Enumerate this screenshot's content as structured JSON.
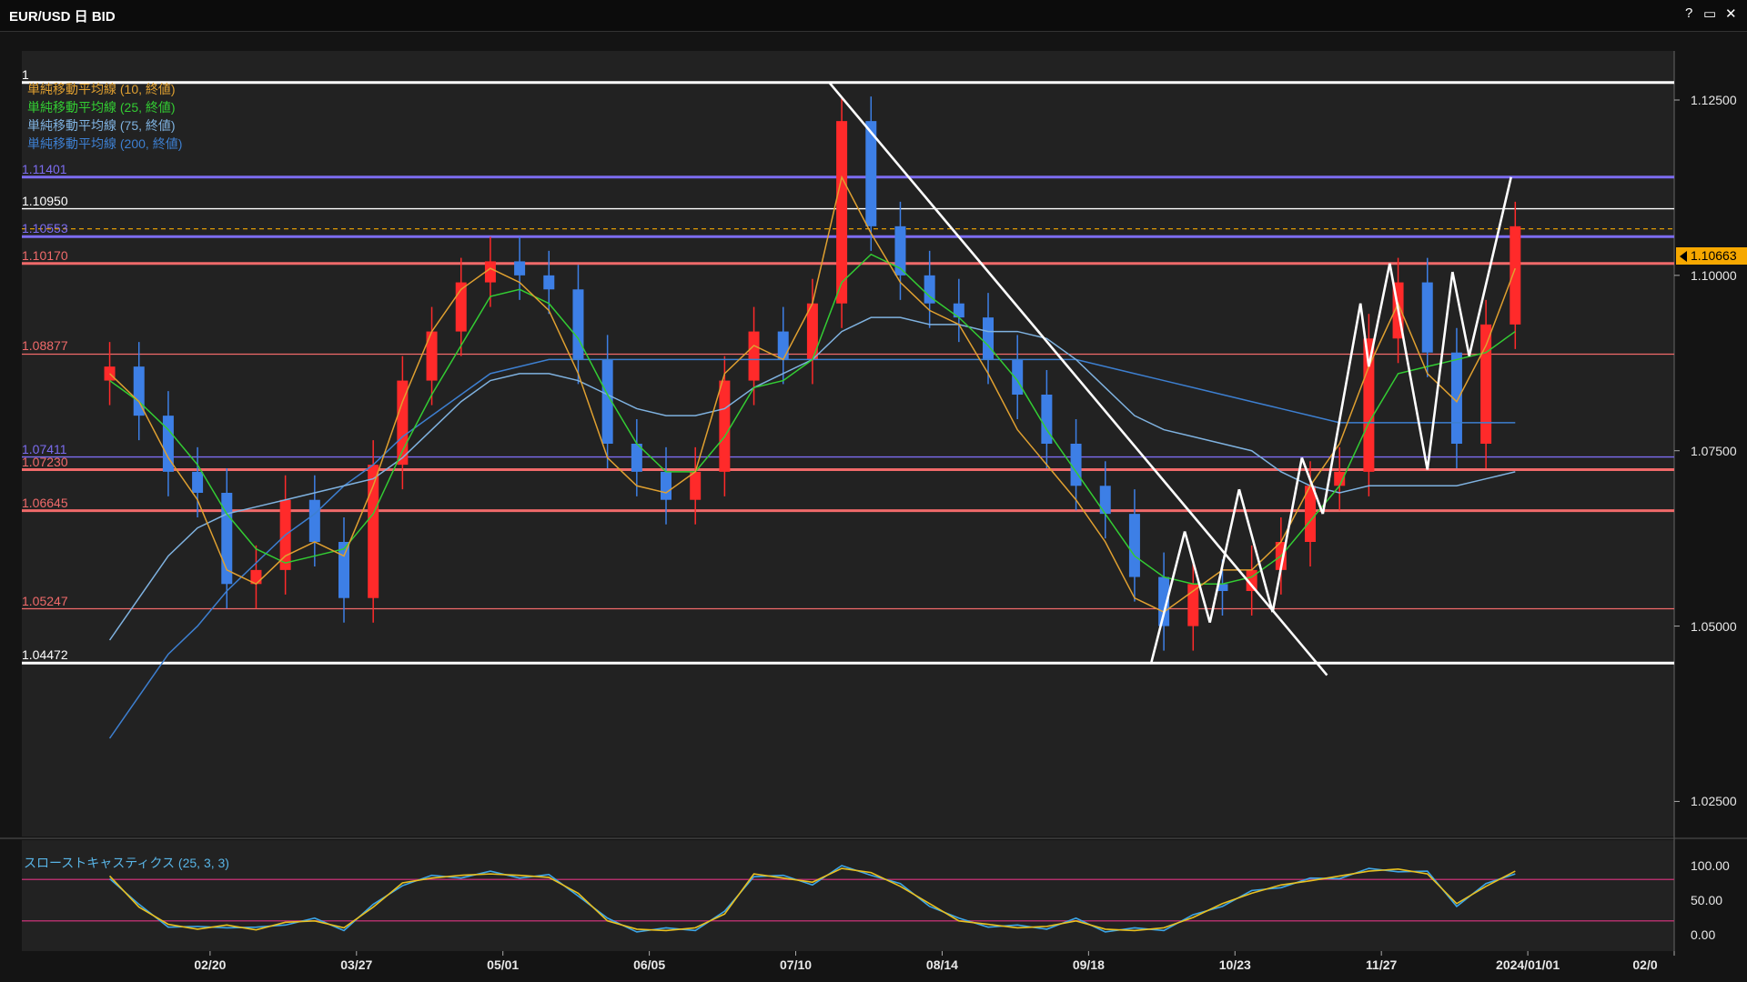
{
  "window": {
    "title": "EUR/USD 日 BID",
    "help": "?",
    "maximize": "▭",
    "close": "✕"
  },
  "legend": [
    {
      "label": "単純移動平均線 (10, 終値)",
      "color": "#e0a030"
    },
    {
      "label": "単純移動平均線 (25, 終値)",
      "color": "#33cc33"
    },
    {
      "label": "単純移動平均線 (75, 終値)",
      "color": "#7fb2e0"
    },
    {
      "label": "単純移動平均線 (200, 終値)",
      "color": "#3d7fd0"
    }
  ],
  "levels": [
    {
      "label": "1",
      "value": 1.1275,
      "color": "#ffffff"
    },
    {
      "label": "1.11401",
      "value": 1.11401,
      "color": "#7c6cf0"
    },
    {
      "label": "1.10950",
      "value": 1.1095,
      "color": "#ffffff"
    },
    {
      "label": "1.10553",
      "value": 1.10553,
      "color": "#7c6cf0"
    },
    {
      "label": "1.10170",
      "value": 1.1017,
      "color": "#f06a6a"
    },
    {
      "label": "1.08877",
      "value": 1.08877,
      "color": "#f06a6a"
    },
    {
      "label": "1.07411",
      "value": 1.07411,
      "color": "#7c6cf0"
    },
    {
      "label": "1.07230",
      "value": 1.0723,
      "color": "#f06a6a"
    },
    {
      "label": "1.06645",
      "value": 1.06645,
      "color": "#f06a6a"
    },
    {
      "label": "1.05247",
      "value": 1.05247,
      "color": "#f06a6a"
    },
    {
      "label": "1.04472",
      "value": 1.04472,
      "color": "#ffffff"
    }
  ],
  "current_price": "1.10663",
  "y_ticks": [
    "1.12500",
    "1.10000",
    "1.07500",
    "1.05000",
    "1.02500"
  ],
  "stoch_ticks": [
    "100.00",
    "50.00",
    "0.00"
  ],
  "stoch_label": "スローストキャスティクス (25, 3, 3)",
  "x_ticks": [
    "02/20",
    "03/27",
    "05/01",
    "06/05",
    "07/10",
    "08/14",
    "09/18",
    "10/23",
    "11/27",
    "2024/01/01",
    "02/0"
  ],
  "chart_data": {
    "type": "candlestick",
    "title": "EUR/USD 日 BID",
    "ylim": [
      1.02,
      1.132
    ],
    "stoch_ylim": [
      0,
      100
    ],
    "up_color": "#ff2a2a",
    "down_color": "#3d7fe6",
    "dates": [
      "2023-01-27",
      "2023-02-03",
      "2023-02-10",
      "2023-02-17",
      "2023-02-24",
      "2023-03-03",
      "2023-03-10",
      "2023-03-17",
      "2023-03-24",
      "2023-03-31",
      "2023-04-07",
      "2023-04-14",
      "2023-04-21",
      "2023-04-28",
      "2023-05-05",
      "2023-05-12",
      "2023-05-19",
      "2023-05-26",
      "2023-06-02",
      "2023-06-09",
      "2023-06-16",
      "2023-06-23",
      "2023-06-30",
      "2023-07-07",
      "2023-07-14",
      "2023-07-21",
      "2023-07-28",
      "2023-08-04",
      "2023-08-11",
      "2023-08-18",
      "2023-08-25",
      "2023-09-01",
      "2023-09-08",
      "2023-09-15",
      "2023-09-22",
      "2023-09-29",
      "2023-10-06",
      "2023-10-13",
      "2023-10-20",
      "2023-10-27",
      "2023-11-03",
      "2023-11-10",
      "2023-11-17",
      "2023-11-24",
      "2023-12-01",
      "2023-12-08",
      "2023-12-15",
      "2023-12-22",
      "2023-12-29"
    ],
    "close": [
      1.087,
      1.08,
      1.072,
      1.069,
      1.056,
      1.058,
      1.068,
      1.062,
      1.054,
      1.073,
      1.085,
      1.092,
      1.099,
      1.102,
      1.1,
      1.098,
      1.088,
      1.076,
      1.072,
      1.068,
      1.072,
      1.085,
      1.092,
      1.088,
      1.096,
      1.122,
      1.107,
      1.1,
      1.096,
      1.094,
      1.088,
      1.083,
      1.076,
      1.07,
      1.066,
      1.057,
      1.05,
      1.056,
      1.055,
      1.058,
      1.062,
      1.07,
      1.072,
      1.091,
      1.099,
      1.089,
      1.076,
      1.093,
      1.107
    ],
    "sma10": [
      1.086,
      1.082,
      1.074,
      1.068,
      1.058,
      1.056,
      1.06,
      1.062,
      1.06,
      1.07,
      1.082,
      1.092,
      1.098,
      1.101,
      1.099,
      1.095,
      1.086,
      1.074,
      1.07,
      1.069,
      1.072,
      1.086,
      1.09,
      1.088,
      1.096,
      1.114,
      1.106,
      1.099,
      1.095,
      1.093,
      1.086,
      1.078,
      1.073,
      1.068,
      1.062,
      1.054,
      1.052,
      1.055,
      1.058,
      1.058,
      1.062,
      1.07,
      1.076,
      1.087,
      1.096,
      1.086,
      1.082,
      1.09,
      1.101
    ],
    "sma25": [
      1.085,
      1.082,
      1.078,
      1.073,
      1.066,
      1.061,
      1.059,
      1.06,
      1.061,
      1.066,
      1.075,
      1.083,
      1.09,
      1.097,
      1.098,
      1.096,
      1.091,
      1.083,
      1.076,
      1.072,
      1.072,
      1.077,
      1.084,
      1.085,
      1.088,
      1.099,
      1.103,
      1.101,
      1.097,
      1.094,
      1.09,
      1.085,
      1.078,
      1.072,
      1.066,
      1.06,
      1.057,
      1.056,
      1.056,
      1.057,
      1.06,
      1.065,
      1.07,
      1.079,
      1.086,
      1.087,
      1.088,
      1.089,
      1.092
    ],
    "sma75": [
      1.048,
      1.054,
      1.06,
      1.064,
      1.066,
      1.067,
      1.068,
      1.069,
      1.07,
      1.071,
      1.074,
      1.078,
      1.082,
      1.085,
      1.086,
      1.086,
      1.085,
      1.083,
      1.081,
      1.08,
      1.08,
      1.081,
      1.084,
      1.086,
      1.088,
      1.092,
      1.094,
      1.094,
      1.093,
      1.093,
      1.092,
      1.092,
      1.091,
      1.088,
      1.084,
      1.08,
      1.078,
      1.077,
      1.076,
      1.075,
      1.072,
      1.07,
      1.069,
      1.07,
      1.07,
      1.07,
      1.07,
      1.071,
      1.072
    ],
    "sma200": [
      1.034,
      1.04,
      1.046,
      1.05,
      1.055,
      1.059,
      1.063,
      1.066,
      1.07,
      1.073,
      1.077,
      1.08,
      1.083,
      1.086,
      1.087,
      1.088,
      1.088,
      1.088,
      1.088,
      1.088,
      1.088,
      1.088,
      1.088,
      1.088,
      1.088,
      1.088,
      1.088,
      1.088,
      1.088,
      1.088,
      1.088,
      1.088,
      1.088,
      1.088,
      1.087,
      1.086,
      1.085,
      1.084,
      1.083,
      1.082,
      1.081,
      1.08,
      1.079,
      1.079,
      1.079,
      1.079,
      1.079,
      1.079,
      1.079
    ],
    "stoch": [
      85,
      40,
      15,
      8,
      14,
      7,
      18,
      20,
      10,
      40,
      75,
      82,
      86,
      88,
      86,
      83,
      60,
      20,
      8,
      6,
      10,
      30,
      88,
      82,
      76,
      96,
      90,
      70,
      45,
      20,
      15,
      10,
      12,
      20,
      8,
      6,
      10,
      25,
      45,
      60,
      72,
      78,
      85,
      92,
      95,
      88,
      45,
      70,
      92
    ],
    "trendlines": [
      {
        "from": [
          "2023-07-18",
          1.1275
        ],
        "to": [
          "2023-11-14",
          1.043
        ]
      },
      {
        "from": [
          "2023-10-03",
          1.0448
        ],
        "to": [
          "2023-10-11",
          1.0635
        ]
      },
      {
        "from": [
          "2023-10-11",
          1.0635
        ],
        "to": [
          "2023-10-17",
          1.0505
        ]
      },
      {
        "from": [
          "2023-10-17",
          1.0505
        ],
        "to": [
          "2023-10-24",
          1.0695
        ]
      },
      {
        "from": [
          "2023-10-24",
          1.0695
        ],
        "to": [
          "2023-11-01",
          1.052
        ]
      },
      {
        "from": [
          "2023-11-01",
          1.052
        ],
        "to": [
          "2023-11-08",
          1.074
        ]
      },
      {
        "from": [
          "2023-11-08",
          1.074
        ],
        "to": [
          "2023-11-13",
          1.066
        ]
      },
      {
        "from": [
          "2023-11-13",
          1.066
        ],
        "to": [
          "2023-11-22",
          1.096
        ]
      },
      {
        "from": [
          "2023-11-22",
          1.096
        ],
        "to": [
          "2023-11-24",
          1.087
        ]
      },
      {
        "from": [
          "2023-11-24",
          1.087
        ],
        "to": [
          "2023-11-29",
          1.1017
        ]
      },
      {
        "from": [
          "2023-11-29",
          1.1017
        ],
        "to": [
          "2023-12-08",
          1.0723
        ]
      },
      {
        "from": [
          "2023-12-08",
          1.0723
        ],
        "to": [
          "2023-12-14",
          1.1005
        ]
      },
      {
        "from": [
          "2023-12-14",
          1.1005
        ],
        "to": [
          "2023-12-18",
          1.0885
        ]
      },
      {
        "from": [
          "2023-12-18",
          1.0885
        ],
        "to": [
          "2023-12-28",
          1.114
        ]
      }
    ]
  }
}
